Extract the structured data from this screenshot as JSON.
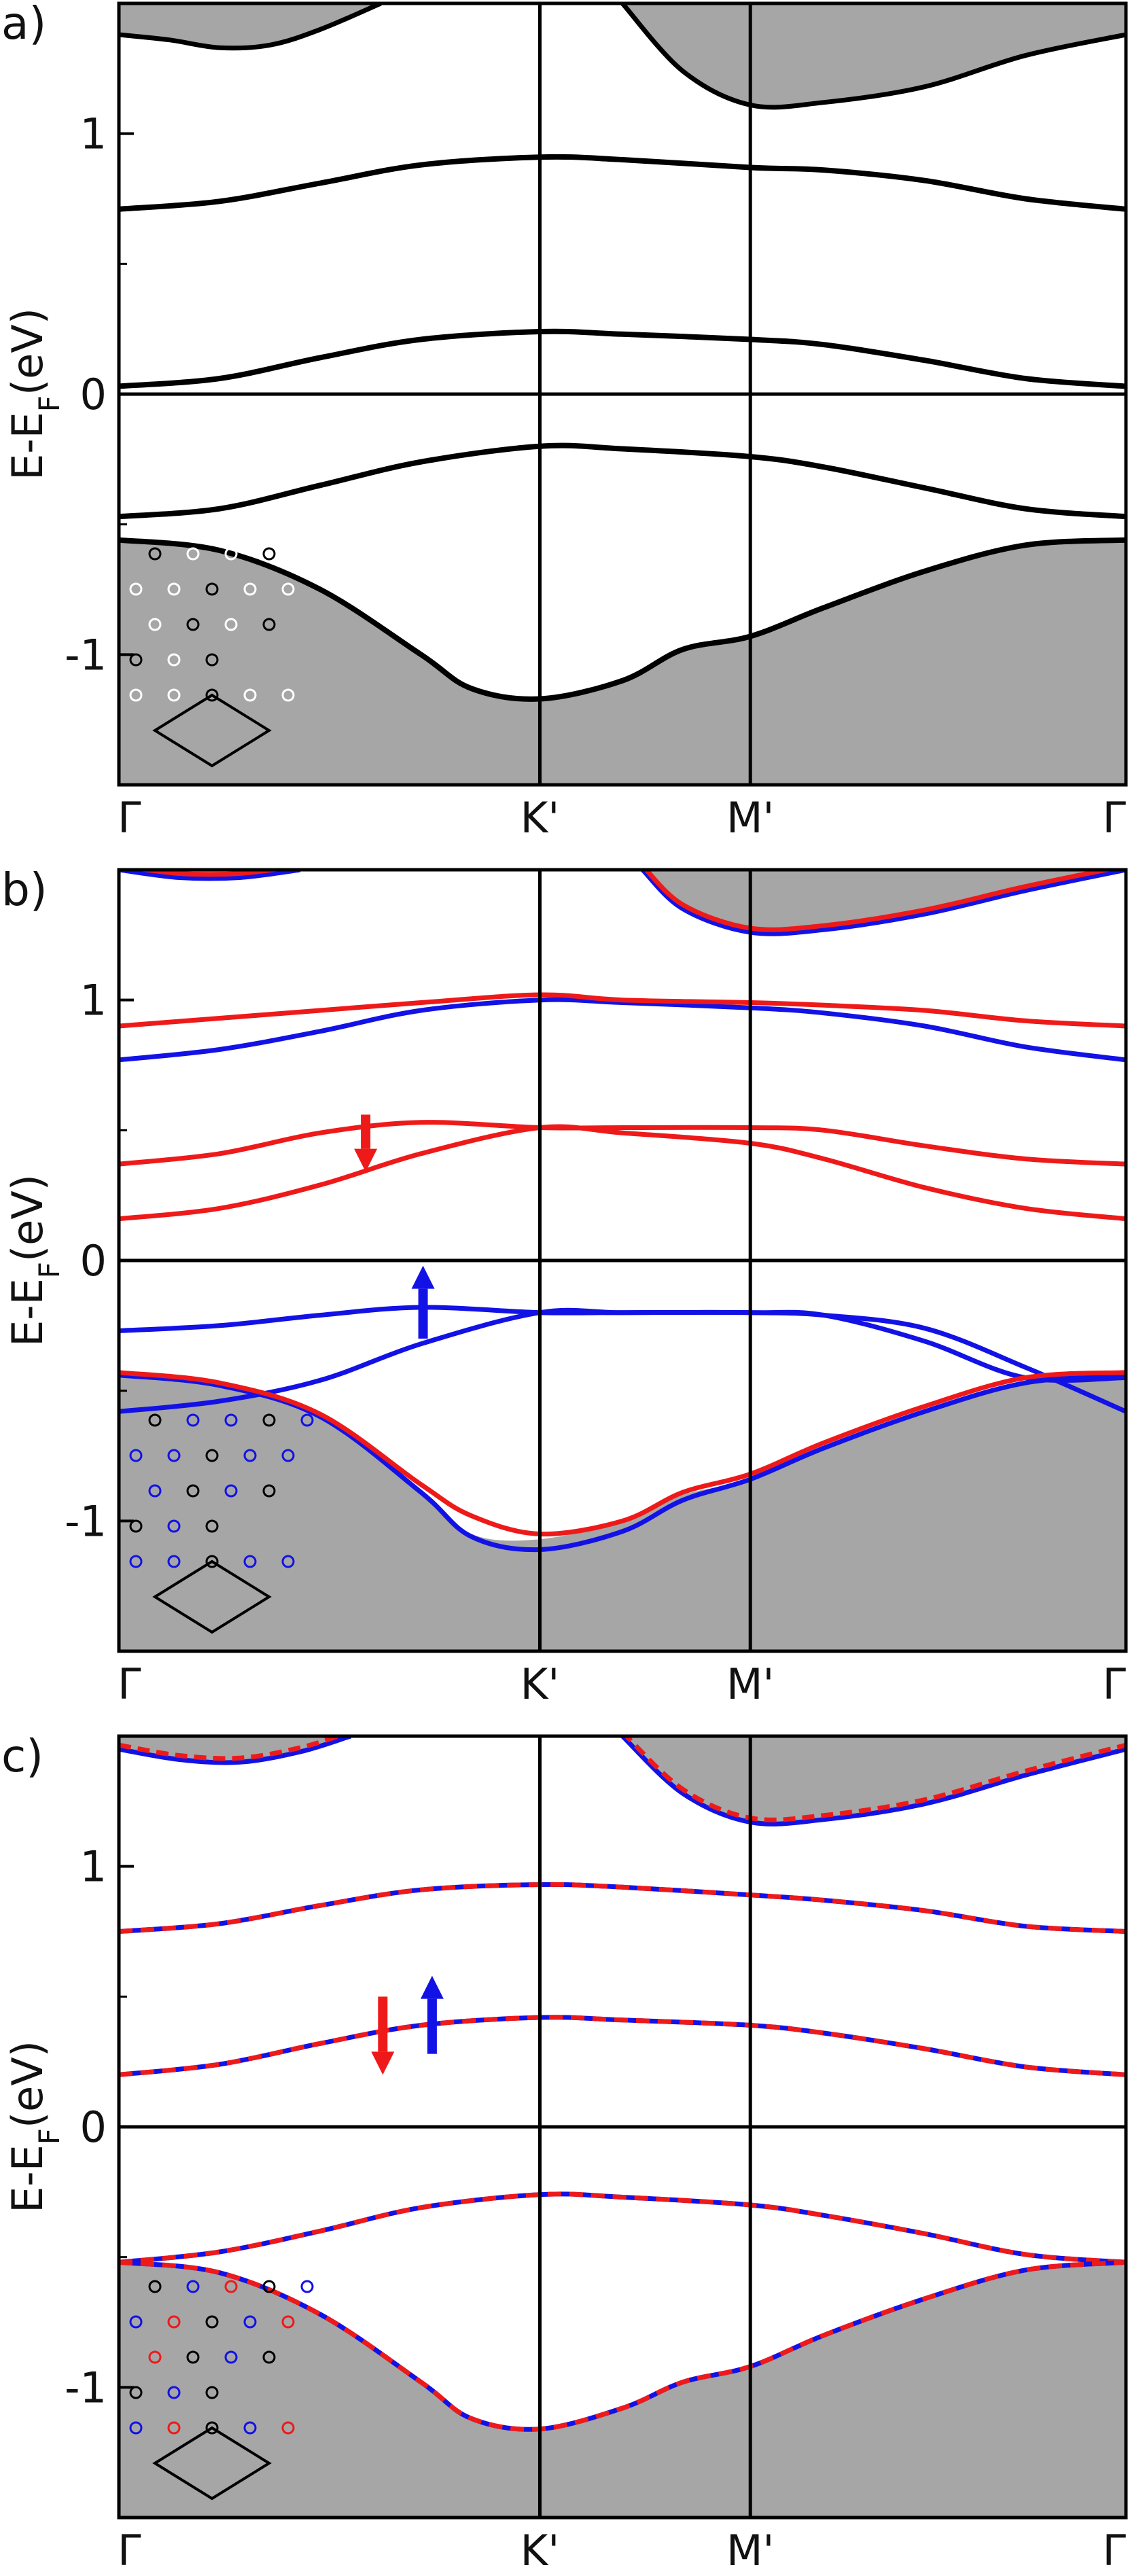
{
  "colors": {
    "spin_up": "#1212e6",
    "spin_down": "#ee1a1a",
    "continuum_fill": "#a6a6a6",
    "axes": "#000000",
    "inset_white_atom": "#ffffff",
    "inset_black_atom": "#000000"
  },
  "chart_data": [
    {
      "panel_label": "a)",
      "type": "line",
      "ylabel_main": "E-E",
      "ylabel_sub": "F",
      "ylabel_unit": "(eV)",
      "ylim": [
        -1.5,
        1.5
      ],
      "yticks": [
        -1,
        0,
        1
      ],
      "ytick_labels": [
        "-1",
        "0",
        "1"
      ],
      "xlim": [
        0,
        1
      ],
      "xticks": [
        0,
        0.418,
        0.627,
        1
      ],
      "xtick_labels": [
        "Γ",
        "K'",
        "M'",
        "Γ"
      ],
      "grid": false,
      "fermi_line": 0,
      "continuum_valence": {
        "x": [
          0,
          0.1,
          0.2,
          0.3,
          0.35,
          0.418,
          0.5,
          0.56,
          0.627,
          0.7,
          0.8,
          0.9,
          1
        ],
        "y": [
          -0.56,
          -0.6,
          -0.75,
          -1.0,
          -1.13,
          -1.17,
          -1.1,
          -0.98,
          -0.93,
          -0.82,
          -0.68,
          -0.58,
          -0.56
        ]
      },
      "continuum_conduction": [
        {
          "x": [
            0,
            0.05,
            0.1,
            0.15,
            0.2,
            0.26
          ],
          "y": [
            1.38,
            1.36,
            1.33,
            1.34,
            1.4,
            1.5
          ]
        },
        {
          "x": [
            0.5,
            0.56,
            0.627,
            0.7,
            0.8,
            0.9,
            1
          ],
          "y": [
            1.5,
            1.24,
            1.11,
            1.12,
            1.18,
            1.3,
            1.38
          ]
        }
      ],
      "series": [
        {
          "color": "black",
          "x": [
            0,
            0.1,
            0.2,
            0.3,
            0.418,
            0.5,
            0.627,
            0.7,
            0.8,
            0.9,
            1
          ],
          "y": [
            0.71,
            0.74,
            0.81,
            0.88,
            0.91,
            0.9,
            0.87,
            0.86,
            0.82,
            0.75,
            0.71
          ]
        },
        {
          "color": "black",
          "x": [
            0,
            0.1,
            0.2,
            0.3,
            0.418,
            0.5,
            0.627,
            0.7,
            0.8,
            0.9,
            1
          ],
          "y": [
            0.03,
            0.06,
            0.14,
            0.21,
            0.24,
            0.23,
            0.21,
            0.19,
            0.13,
            0.06,
            0.03
          ]
        },
        {
          "color": "black",
          "x": [
            0,
            0.1,
            0.2,
            0.3,
            0.418,
            0.5,
            0.627,
            0.7,
            0.8,
            0.9,
            1
          ],
          "y": [
            -0.47,
            -0.44,
            -0.35,
            -0.26,
            -0.2,
            -0.21,
            -0.24,
            -0.28,
            -0.36,
            -0.44,
            -0.47
          ]
        }
      ],
      "spin_arrows": [],
      "inset_atom_colors": [
        [
          "black",
          "white",
          "white",
          "black",
          "white"
        ],
        [
          "white",
          "white",
          "black",
          "white",
          "white"
        ],
        [
          "white",
          "black",
          "white",
          "black",
          null
        ],
        [
          "black",
          "white",
          "black",
          null,
          null
        ],
        [
          "white",
          "white",
          "black",
          "white",
          "white"
        ]
      ]
    },
    {
      "panel_label": "b)",
      "type": "line",
      "ylabel_main": "E-E",
      "ylabel_sub": "F",
      "ylabel_unit": "(eV)",
      "ylim": [
        -1.5,
        1.5
      ],
      "yticks": [
        -1,
        0,
        1
      ],
      "ytick_labels": [
        "-1",
        "0",
        "1"
      ],
      "xlim": [
        0,
        1
      ],
      "xticks": [
        0,
        0.418,
        0.627,
        1
      ],
      "xtick_labels": [
        "Γ",
        "K'",
        "M'",
        "Γ"
      ],
      "grid": false,
      "fermi_line": 0,
      "continuum_valence": {
        "x": [
          0,
          0.1,
          0.2,
          0.3,
          0.35,
          0.418,
          0.5,
          0.56,
          0.627,
          0.7,
          0.8,
          0.9,
          1
        ],
        "y": [
          -0.44,
          -0.48,
          -0.6,
          -0.88,
          -1.05,
          -1.07,
          -1.0,
          -0.9,
          -0.84,
          -0.72,
          -0.58,
          -0.47,
          -0.44
        ]
      },
      "continuum_conduction": [
        {
          "x": [
            0,
            0.06,
            0.12,
            0.18
          ],
          "y": [
            1.5,
            1.47,
            1.47,
            1.5
          ]
        },
        {
          "x": [
            0.52,
            0.56,
            0.627,
            0.7,
            0.8,
            0.9,
            1
          ],
          "y": [
            1.5,
            1.35,
            1.26,
            1.27,
            1.33,
            1.42,
            1.5
          ]
        }
      ],
      "series": [
        {
          "color": "spin_up",
          "x": [
            0,
            0.1,
            0.2,
            0.3,
            0.418,
            0.5,
            0.627,
            0.7,
            0.8,
            0.9,
            1
          ],
          "y": [
            0.77,
            0.81,
            0.88,
            0.96,
            1.0,
            0.99,
            0.97,
            0.95,
            0.9,
            0.82,
            0.77
          ]
        },
        {
          "color": "spin_down",
          "x": [
            0,
            0.1,
            0.2,
            0.3,
            0.418,
            0.5,
            0.627,
            0.7,
            0.8,
            0.9,
            1
          ],
          "y": [
            0.9,
            0.93,
            0.96,
            0.99,
            1.02,
            1.0,
            0.99,
            0.98,
            0.96,
            0.92,
            0.9
          ]
        },
        {
          "color": "spin_down",
          "x": [
            0,
            0.1,
            0.2,
            0.3,
            0.418,
            0.5,
            0.627,
            0.7,
            0.8,
            0.9,
            1
          ],
          "y": [
            0.37,
            0.41,
            0.49,
            0.53,
            0.51,
            0.51,
            0.51,
            0.5,
            0.44,
            0.39,
            0.37
          ]
        },
        {
          "color": "spin_down",
          "x": [
            0,
            0.1,
            0.2,
            0.3,
            0.418,
            0.5,
            0.627,
            0.7,
            0.8,
            0.9,
            1
          ],
          "y": [
            0.16,
            0.2,
            0.29,
            0.41,
            0.51,
            0.49,
            0.45,
            0.39,
            0.28,
            0.2,
            0.16
          ]
        },
        {
          "color": "spin_up",
          "x": [
            0,
            0.1,
            0.2,
            0.3,
            0.418,
            0.5,
            0.627,
            0.7,
            0.8,
            0.9,
            1
          ],
          "y": [
            -0.27,
            -0.25,
            -0.21,
            -0.18,
            -0.2,
            -0.2,
            -0.2,
            -0.21,
            -0.26,
            -0.41,
            -0.58
          ]
        },
        {
          "color": "spin_up",
          "x": [
            0,
            0.1,
            0.2,
            0.3,
            0.418,
            0.5,
            0.627,
            0.7,
            0.8,
            0.9,
            1
          ],
          "y": [
            -0.58,
            -0.54,
            -0.46,
            -0.32,
            -0.2,
            -0.2,
            -0.2,
            -0.21,
            -0.31,
            -0.45,
            -0.45
          ]
        },
        {
          "color": "spin_up",
          "x": [
            0,
            0.1,
            0.2,
            0.3,
            0.35,
            0.418,
            0.5,
            0.56,
            0.627,
            0.7,
            0.8,
            0.9,
            1
          ],
          "y": [
            -0.44,
            -0.48,
            -0.6,
            -0.89,
            -1.06,
            -1.11,
            -1.04,
            -0.92,
            -0.84,
            -0.72,
            -0.58,
            -0.47,
            -0.44
          ]
        },
        {
          "color": "spin_down",
          "x": [
            0,
            0.1,
            0.2,
            0.3,
            0.35,
            0.418,
            0.5,
            0.56,
            0.627,
            0.7,
            0.8,
            0.9,
            1
          ],
          "y": [
            -0.43,
            -0.47,
            -0.59,
            -0.86,
            -0.98,
            -1.05,
            -1.0,
            -0.89,
            -0.82,
            -0.7,
            -0.56,
            -0.45,
            -0.43
          ]
        }
      ],
      "spin_arrows": [
        {
          "color": "spin_down",
          "direction": "down",
          "x": 0.245,
          "y_from": 0.56,
          "y_to": 0.34
        },
        {
          "color": "spin_up",
          "direction": "up",
          "x": 0.302,
          "y_from": -0.3,
          "y_to": -0.02
        }
      ],
      "inset_atom_colors": [
        [
          "black",
          "blue",
          "blue",
          "black",
          "blue"
        ],
        [
          "blue",
          "blue",
          "black",
          "blue",
          "blue"
        ],
        [
          "blue",
          "black",
          "blue",
          "black",
          null
        ],
        [
          "black",
          "blue",
          "black",
          null,
          null
        ],
        [
          "blue",
          "blue",
          "black",
          "blue",
          "blue"
        ]
      ]
    },
    {
      "panel_label": "c)",
      "type": "line",
      "ylabel_main": "E-E",
      "ylabel_sub": "F",
      "ylabel_unit": "(eV)",
      "ylim": [
        -1.5,
        1.5
      ],
      "yticks": [
        -1,
        0,
        1
      ],
      "ytick_labels": [
        "-1",
        "0",
        "1"
      ],
      "xlim": [
        0,
        1
      ],
      "xticks": [
        0,
        0.418,
        0.627,
        1
      ],
      "xtick_labels": [
        "Γ",
        "K'",
        "M'",
        "Γ"
      ],
      "grid": false,
      "fermi_line": 0,
      "continuum_valence": {
        "x": [
          0,
          0.1,
          0.2,
          0.3,
          0.35,
          0.418,
          0.5,
          0.56,
          0.627,
          0.7,
          0.8,
          0.9,
          1
        ],
        "y": [
          -0.52,
          -0.56,
          -0.72,
          -0.98,
          -1.12,
          -1.16,
          -1.08,
          -0.98,
          -0.92,
          -0.8,
          -0.66,
          -0.55,
          -0.52
        ]
      },
      "continuum_conduction": [
        {
          "x": [
            0,
            0.06,
            0.12,
            0.18,
            0.23
          ],
          "y": [
            1.45,
            1.41,
            1.4,
            1.44,
            1.5
          ]
        },
        {
          "x": [
            0.5,
            0.56,
            0.627,
            0.7,
            0.8,
            0.9,
            1
          ],
          "y": [
            1.5,
            1.28,
            1.17,
            1.18,
            1.24,
            1.35,
            1.45
          ]
        }
      ],
      "series": [
        {
          "color": "spin_up",
          "dashed_overlay": "spin_down",
          "x": [
            0,
            0.1,
            0.2,
            0.3,
            0.418,
            0.5,
            0.627,
            0.7,
            0.8,
            0.9,
            1
          ],
          "y": [
            0.75,
            0.78,
            0.85,
            0.91,
            0.93,
            0.92,
            0.89,
            0.87,
            0.83,
            0.77,
            0.75
          ]
        },
        {
          "color": "spin_up",
          "dashed_overlay": "spin_down",
          "x": [
            0,
            0.1,
            0.2,
            0.3,
            0.418,
            0.5,
            0.627,
            0.7,
            0.8,
            0.9,
            1
          ],
          "y": [
            0.2,
            0.24,
            0.32,
            0.39,
            0.42,
            0.41,
            0.39,
            0.36,
            0.3,
            0.23,
            0.2
          ]
        },
        {
          "color": "spin_up",
          "dashed_overlay": "spin_down",
          "x": [
            0,
            0.1,
            0.2,
            0.3,
            0.418,
            0.5,
            0.627,
            0.7,
            0.8,
            0.9,
            1
          ],
          "y": [
            -0.52,
            -0.48,
            -0.4,
            -0.31,
            -0.26,
            -0.27,
            -0.3,
            -0.34,
            -0.41,
            -0.49,
            -0.52
          ]
        },
        {
          "color": "spin_up",
          "dashed_overlay": "spin_down",
          "x": [
            0,
            0.1,
            0.2,
            0.3,
            0.35,
            0.418,
            0.5,
            0.56,
            0.627,
            0.7,
            0.8,
            0.9,
            1
          ],
          "y": [
            -0.52,
            -0.56,
            -0.72,
            -0.98,
            -1.12,
            -1.16,
            -1.08,
            -0.98,
            -0.92,
            -0.8,
            -0.66,
            -0.55,
            -0.52
          ]
        }
      ],
      "spin_arrows": [
        {
          "color": "spin_down",
          "direction": "down",
          "x": 0.262,
          "y_from": 0.5,
          "y_to": 0.2
        },
        {
          "color": "spin_up",
          "direction": "up",
          "x": 0.311,
          "y_from": 0.28,
          "y_to": 0.58
        }
      ],
      "inset_atom_colors": [
        [
          "black",
          "blue",
          "red",
          "black",
          "blue"
        ],
        [
          "blue",
          "red",
          "black",
          "blue",
          "red"
        ],
        [
          "red",
          "black",
          "blue",
          "black",
          null
        ],
        [
          "black",
          "blue",
          "black",
          null,
          null
        ],
        [
          "blue",
          "red",
          "black",
          "blue",
          "red"
        ]
      ]
    }
  ]
}
